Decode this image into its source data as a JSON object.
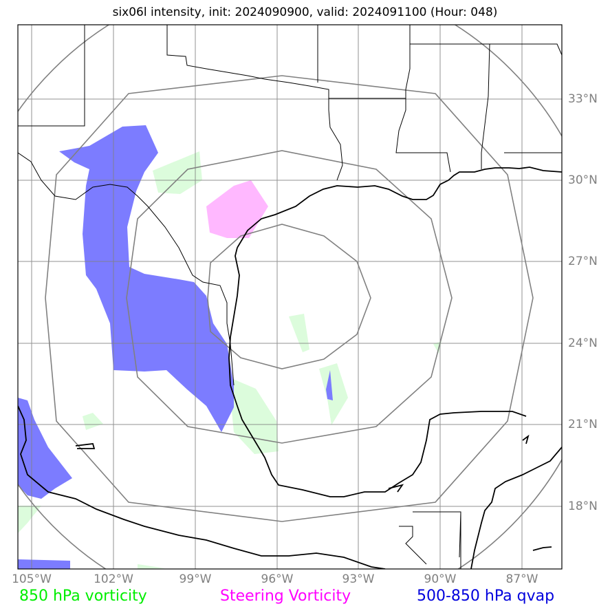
{
  "title": "six06l intensity, init: 2024090900, valid: 2024091100 (Hour: 048)",
  "lon_labels": [
    "105°W",
    "102°W",
    "99°W",
    "96°W",
    "93°W",
    "90°W",
    "87°W"
  ],
  "lat_labels": [
    "33°N",
    "30°N",
    "27°N",
    "24°N",
    "21°N",
    "18°N"
  ],
  "legend": {
    "vorticity_850": {
      "label": "850 hPa vorticity",
      "color": "#00ee00"
    },
    "steering_vorticity": {
      "label": "Steering Vorticity",
      "color": "#ff00ff"
    },
    "qvap_500_850": {
      "label": "500-850 hPa qvap",
      "color": "#0000dd"
    }
  },
  "colors": {
    "grid": "#808080",
    "coast": "#000000",
    "vort_fill": "#dcfcdc",
    "steer_fill": "#ffb8ff",
    "qvap_fill": "#7c7cff"
  }
}
